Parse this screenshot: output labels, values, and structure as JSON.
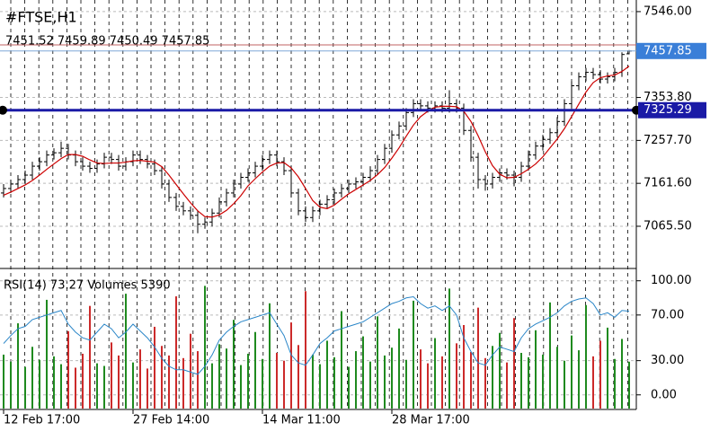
{
  "chart_data": [
    {
      "type": "ohlc",
      "title": "#FTSE,H1",
      "subtitle": "7451.52 7459.89 7450.49 7457.85",
      "open": [
        7140,
        7150,
        7160,
        7170,
        7180,
        7200,
        7210,
        7225,
        7230,
        7240,
        7225,
        7210,
        7200,
        7195,
        7205,
        7220,
        7215,
        7200,
        7210,
        7225,
        7215,
        7205,
        7190,
        7160,
        7130,
        7110,
        7100,
        7090,
        7070,
        7075,
        7095,
        7120,
        7140,
        7160,
        7175,
        7185,
        7200,
        7215,
        7225,
        7210,
        7190,
        7140,
        7100,
        7085,
        7100,
        7115,
        7125,
        7140,
        7150,
        7160,
        7165,
        7175,
        7190,
        7215,
        7240,
        7270,
        7290,
        7320,
        7340,
        7335,
        7330,
        7335,
        7330,
        7340,
        7330,
        7280,
        7220,
        7170,
        7160,
        7175,
        7185,
        7180,
        7175,
        7200,
        7225,
        7245,
        7260,
        7275,
        7300,
        7340,
        7380,
        7400,
        7410,
        7405,
        7395,
        7400,
        7410,
        7451.52
      ],
      "high": [
        7160,
        7170,
        7180,
        7190,
        7210,
        7220,
        7235,
        7240,
        7255,
        7250,
        7235,
        7220,
        7210,
        7215,
        7230,
        7230,
        7225,
        7220,
        7235,
        7235,
        7225,
        7215,
        7200,
        7170,
        7140,
        7120,
        7110,
        7100,
        7085,
        7105,
        7130,
        7150,
        7170,
        7185,
        7195,
        7210,
        7225,
        7235,
        7235,
        7220,
        7200,
        7150,
        7110,
        7110,
        7125,
        7135,
        7150,
        7160,
        7170,
        7175,
        7185,
        7200,
        7225,
        7250,
        7280,
        7300,
        7330,
        7350,
        7350,
        7345,
        7345,
        7345,
        7370,
        7350,
        7340,
        7290,
        7230,
        7180,
        7185,
        7195,
        7195,
        7190,
        7210,
        7235,
        7255,
        7270,
        7285,
        7310,
        7350,
        7390,
        7410,
        7420,
        7420,
        7415,
        7410,
        7420,
        7455,
        7459.89
      ],
      "low": [
        7130,
        7140,
        7150,
        7160,
        7170,
        7190,
        7200,
        7215,
        7220,
        7215,
        7200,
        7190,
        7185,
        7185,
        7195,
        7205,
        7190,
        7190,
        7200,
        7205,
        7195,
        7180,
        7150,
        7120,
        7100,
        7090,
        7080,
        7050,
        7060,
        7065,
        7085,
        7110,
        7130,
        7150,
        7165,
        7175,
        7190,
        7205,
        7200,
        7180,
        7130,
        7090,
        7075,
        7075,
        7090,
        7105,
        7115,
        7130,
        7140,
        7150,
        7155,
        7165,
        7180,
        7205,
        7230,
        7260,
        7280,
        7310,
        7325,
        7320,
        7320,
        7320,
        7320,
        7320,
        7270,
        7210,
        7150,
        7145,
        7150,
        7165,
        7170,
        7155,
        7165,
        7190,
        7215,
        7235,
        7250,
        7265,
        7290,
        7330,
        7370,
        7390,
        7395,
        7385,
        7385,
        7390,
        7400,
        7450.49
      ],
      "close": [
        7150,
        7160,
        7170,
        7180,
        7200,
        7210,
        7225,
        7230,
        7240,
        7225,
        7210,
        7200,
        7195,
        7205,
        7220,
        7215,
        7200,
        7210,
        7225,
        7215,
        7205,
        7190,
        7160,
        7130,
        7110,
        7100,
        7090,
        7070,
        7075,
        7095,
        7120,
        7140,
        7160,
        7175,
        7185,
        7200,
        7215,
        7225,
        7210,
        7190,
        7140,
        7100,
        7085,
        7100,
        7115,
        7125,
        7140,
        7150,
        7160,
        7165,
        7175,
        7190,
        7215,
        7240,
        7270,
        7290,
        7320,
        7340,
        7335,
        7330,
        7335,
        7330,
        7340,
        7330,
        7280,
        7220,
        7170,
        7160,
        7175,
        7185,
        7180,
        7175,
        7200,
        7225,
        7245,
        7260,
        7275,
        7300,
        7340,
        7380,
        7400,
        7410,
        7405,
        7395,
        7400,
        7410,
        7450,
        7457.85
      ],
      "color": "#000000",
      "ma": {
        "color": "#cc0000",
        "values": [
          7135,
          7142,
          7150,
          7158,
          7168,
          7180,
          7193,
          7205,
          7217,
          7226,
          7226,
          7222,
          7214,
          7207,
          7206,
          7207,
          7207,
          7209,
          7212,
          7213,
          7211,
          7209,
          7199,
          7180,
          7159,
          7138,
          7118,
          7100,
          7087,
          7086,
          7091,
          7101,
          7116,
          7134,
          7156,
          7172,
          7187,
          7200,
          7207,
          7208,
          7196,
          7176,
          7150,
          7123,
          7108,
          7105,
          7113,
          7126,
          7138,
          7148,
          7158,
          7168,
          7181,
          7197,
          7218,
          7241,
          7267,
          7292,
          7311,
          7323,
          7332,
          7334,
          7334,
          7333,
          7323,
          7300,
          7268,
          7232,
          7201,
          7182,
          7174,
          7175,
          7183,
          7193,
          7205,
          7221,
          7241,
          7261,
          7284,
          7311,
          7339,
          7366,
          7387,
          7398,
          7402,
          7404,
          7412,
          7424
        ]
      },
      "hline": {
        "value": 7325.29,
        "color": "#1a1aa6"
      },
      "ask_line": {
        "value": 7471.5,
        "color": "#c06060"
      },
      "bid_color": "#7fa8d8",
      "price_box_color": "#3a7fd8",
      "ylim": [
        6973,
        7572
      ],
      "yticks": [
        {
          "value": 7546,
          "label": "7546.00"
        },
        {
          "value": 7353.8,
          "label": "7353.80"
        },
        {
          "value": 7257.7,
          "label": "7257.70"
        },
        {
          "value": 7161.6,
          "label": "7161.60"
        },
        {
          "value": 7065.5,
          "label": "7065.50"
        }
      ],
      "xticks": [
        {
          "value": 0,
          "label": "12 Feb 17:00"
        },
        {
          "value": 18,
          "label": "27 Feb 14:00"
        },
        {
          "value": 36,
          "label": "14 Mar 11:00"
        },
        {
          "value": 54,
          "label": "28 Mar 17:00"
        }
      ],
      "grid": true
    },
    {
      "type": "indicator",
      "title": "RSI(14) 73.27 Volumes 5390",
      "rsi": {
        "color": "#2a86c8",
        "values": [
          45,
          52,
          58,
          60,
          66,
          68,
          70,
          72,
          74,
          62,
          55,
          50,
          48,
          55,
          62,
          58,
          50,
          55,
          62,
          56,
          50,
          42,
          32,
          25,
          22,
          22,
          20,
          18,
          25,
          35,
          48,
          55,
          60,
          64,
          66,
          68,
          70,
          72,
          62,
          52,
          35,
          28,
          26,
          35,
          45,
          50,
          56,
          58,
          60,
          62,
          64,
          68,
          72,
          76,
          80,
          82,
          85,
          86,
          80,
          76,
          78,
          74,
          78,
          70,
          50,
          38,
          28,
          26,
          35,
          42,
          40,
          38,
          50,
          58,
          62,
          65,
          68,
          72,
          78,
          82,
          84,
          85,
          80,
          70,
          72,
          68,
          74,
          73.27
        ]
      },
      "volume": {
        "up_color": "#1f8a1f",
        "down_color": "#cc2a2a",
        "ylim": [
          0,
          16000
        ],
        "values": [
          6200,
          5400,
          9800,
          4800,
          7100,
          5600,
          12500,
          6000,
          5100,
          8900,
          4700,
          6300,
          11800,
          5200,
          4900,
          7600,
          6100,
          13200,
          5300,
          6800,
          4600,
          9400,
          7200,
          6100,
          12900,
          5800,
          8600,
          6600,
          14100,
          5200,
          7400,
          6900,
          10200,
          5000,
          6300,
          8800,
          5700,
          12100,
          6400,
          5500,
          9900,
          7300,
          13500,
          6200,
          5100,
          7800,
          5900,
          11200,
          4800,
          6600,
          8300,
          5400,
          10600,
          6100,
          7000,
          9200,
          5600,
          12400,
          6800,
          5200,
          8100,
          6000,
          13800,
          7500,
          9600,
          6500,
          11600,
          5800,
          7200,
          8700,
          5300,
          10400,
          6400,
          5900,
          9000,
          6200,
          12200,
          7100,
          5500,
          8400,
          6700,
          11900,
          6000,
          7800,
          9300,
          5700,
          8000,
          5390
        ]
      },
      "ylim": [
        -12,
        110
      ],
      "yticks": [
        {
          "value": 100,
          "label": "100.00"
        },
        {
          "value": 70,
          "label": "70.00"
        },
        {
          "value": 30,
          "label": "30.00"
        },
        {
          "value": 0,
          "label": "0.00"
        }
      ],
      "grid": true
    }
  ]
}
